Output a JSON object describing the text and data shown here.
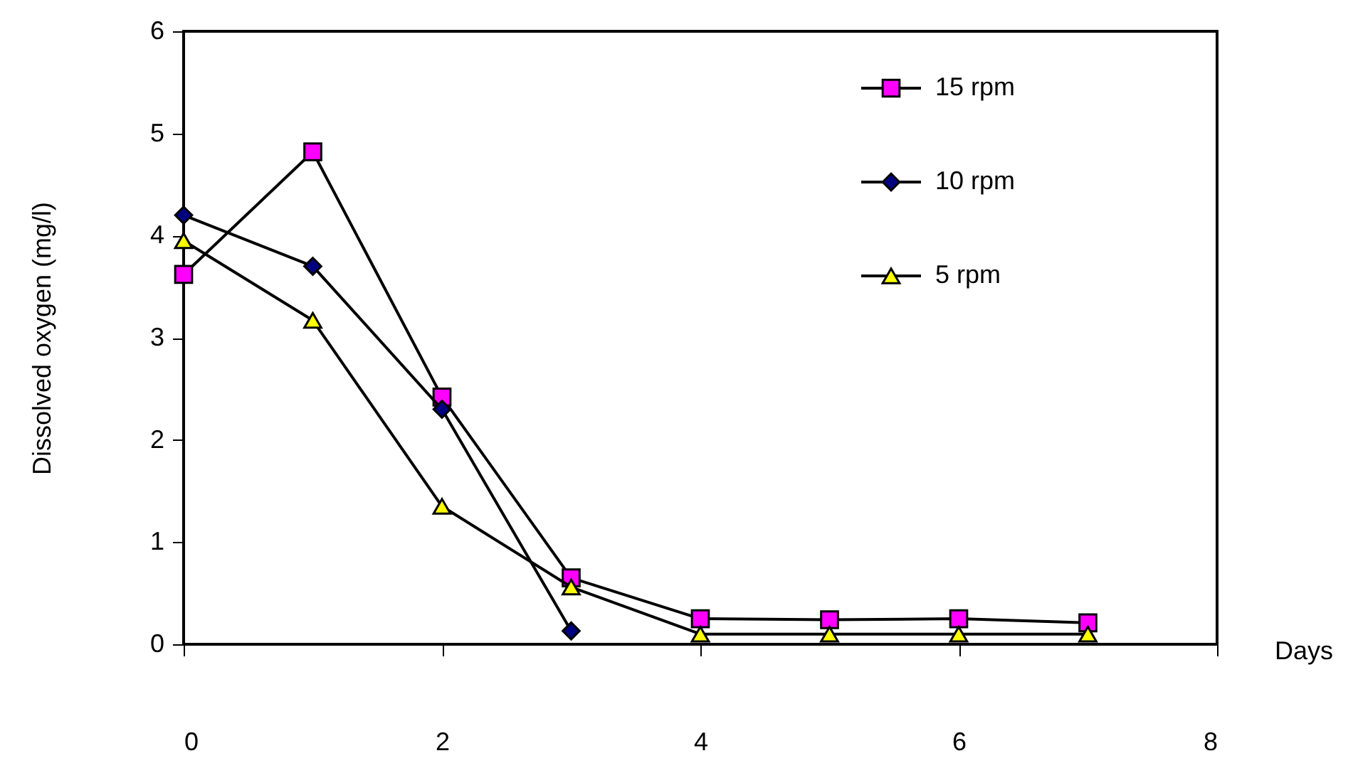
{
  "chart_data": {
    "type": "line",
    "xlabel": "Days",
    "ylabel": "Dissolved oxygen (mg/l)",
    "x": [
      0,
      1,
      2,
      3,
      4,
      5,
      6,
      7
    ],
    "series": [
      {
        "name": "15 rpm",
        "color": "#ff00ff",
        "marker": "square",
        "values": [
          3.62,
          4.82,
          2.42,
          0.65,
          0.25,
          0.24,
          0.25,
          0.21
        ]
      },
      {
        "name": "10 rpm",
        "color": "#000080",
        "marker": "diamond",
        "values": [
          4.2,
          3.7,
          2.3,
          0.13,
          null,
          null,
          null,
          null
        ]
      },
      {
        "name": "5 rpm",
        "color": "#ffff00",
        "marker": "triangle",
        "values": [
          3.95,
          3.17,
          1.35,
          0.56,
          0.1,
          0.1,
          0.1,
          0.1
        ]
      }
    ],
    "xlim": [
      0,
      8
    ],
    "xticks": [
      0,
      2,
      4,
      6,
      8
    ],
    "ylim": [
      0,
      6
    ],
    "yticks": [
      0,
      1,
      2,
      3,
      4,
      5,
      6
    ],
    "grid": false,
    "legend": "top right",
    "line_style": "solid"
  }
}
